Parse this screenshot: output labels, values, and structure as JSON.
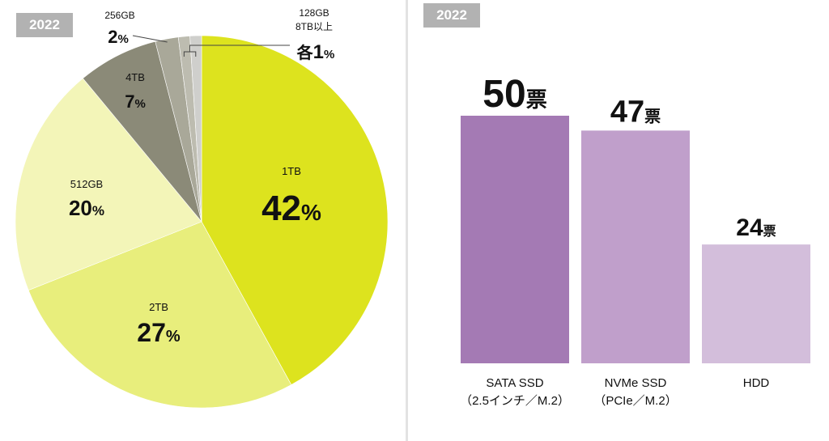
{
  "chart_data": [
    {
      "type": "pie",
      "year_label": "2022",
      "slices": [
        {
          "label": "1TB",
          "value": 42,
          "value_text": "42",
          "unit": "%",
          "color": "#dde31e"
        },
        {
          "label": "2TB",
          "value": 27,
          "value_text": "27",
          "unit": "%",
          "color": "#e8ee7c"
        },
        {
          "label": "512GB",
          "value": 20,
          "value_text": "20",
          "unit": "%",
          "color": "#f3f5b8"
        },
        {
          "label": "4TB",
          "value": 7,
          "value_text": "7",
          "unit": "%",
          "color": "#8b8a78"
        },
        {
          "label": "256GB",
          "value": 2,
          "value_text": "2",
          "unit": "%",
          "color": "#a9a899"
        },
        {
          "label": "8TB以上",
          "value": 1,
          "color": "#bdbcb0"
        },
        {
          "label": "128GB",
          "value": 1,
          "color": "#cfcfcc"
        }
      ],
      "combined_label": {
        "line1": "128GB",
        "line2": "8TB以上",
        "prefix": "各",
        "value_text": "1",
        "unit": "%"
      }
    },
    {
      "type": "bar",
      "year_label": "2022",
      "categories": [
        {
          "line1": "SATA SSD",
          "line2": "（2.5インチ／M.2）"
        },
        {
          "line1": "NVMe SSD",
          "line2": "（PCIe／M.2）"
        },
        {
          "line1": "HDD",
          "line2": ""
        }
      ],
      "values": [
        50,
        47,
        24
      ],
      "value_labels": [
        "50",
        "47",
        "24"
      ],
      "unit": "票",
      "colors": [
        "#a47ab4",
        "#c09fcb",
        "#d3bedb"
      ],
      "ylim": [
        0,
        52
      ]
    }
  ]
}
